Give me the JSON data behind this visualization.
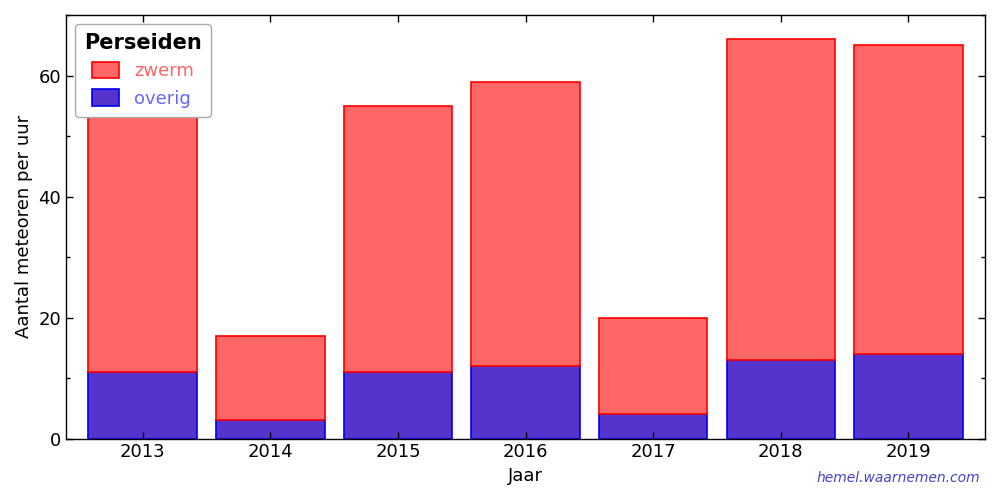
{
  "years": [
    "2013",
    "2014",
    "2015",
    "2016",
    "2017",
    "2018",
    "2019"
  ],
  "zwerm": [
    47,
    14,
    44,
    47,
    16,
    53,
    51
  ],
  "overig": [
    11,
    3,
    11,
    12,
    4,
    13,
    14
  ],
  "zwerm_color": "#FF6666",
  "overig_color": "#5533CC",
  "zwerm_edge": "#FF0000",
  "overig_edge": "#0000EE",
  "title": "Perseiden",
  "xlabel": "Jaar",
  "ylabel": "Aantal meteoren per uur",
  "ylim": [
    0,
    70
  ],
  "yticks": [
    0,
    20,
    40,
    60
  ],
  "legend_zwerm": "zwerm",
  "legend_overig": "overig",
  "legend_zwerm_color": "#FF6666",
  "legend_overig_color": "#6666FF",
  "watermark": "hemel.waarnemen.com",
  "watermark_color": "#4444CC",
  "bar_width": 0.85,
  "figsize": [
    10.0,
    5.0
  ],
  "dpi": 100
}
